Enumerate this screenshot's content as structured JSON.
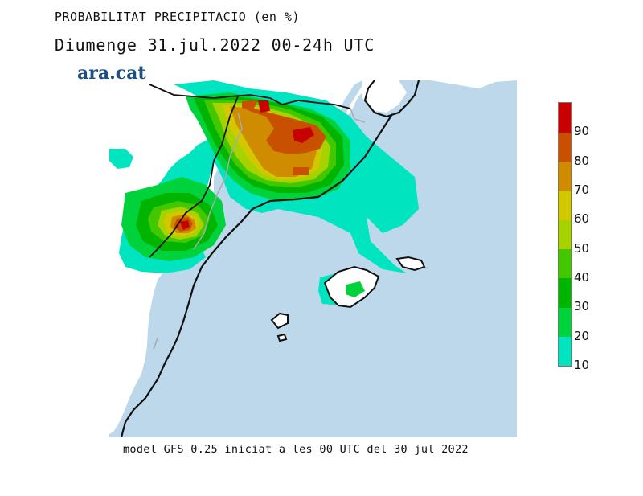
{
  "header": {
    "title": "PROBABILITAT PRECIPITACIO (en %)",
    "subtitle": "Diumenge  31.jul.2022 00-24h UTC"
  },
  "brand": {
    "name": "ara.cat"
  },
  "footer": {
    "text": "model GFS 0.25 iniciat a les 00 UTC del 30 jul 2022"
  },
  "legend": {
    "ticks": [
      "10",
      "20",
      "30",
      "40",
      "50",
      "60",
      "70",
      "80",
      "90"
    ],
    "colors": [
      "#00e5c0",
      "#00d23c",
      "#00b400",
      "#43c800",
      "#a6d200",
      "#d2c800",
      "#d08c00",
      "#c85000",
      "#c80000"
    ]
  },
  "colors": {
    "sea": "#bcd8ea",
    "land": "#ffffff",
    "coast": "#111111",
    "border": "#aaaaaa"
  }
}
